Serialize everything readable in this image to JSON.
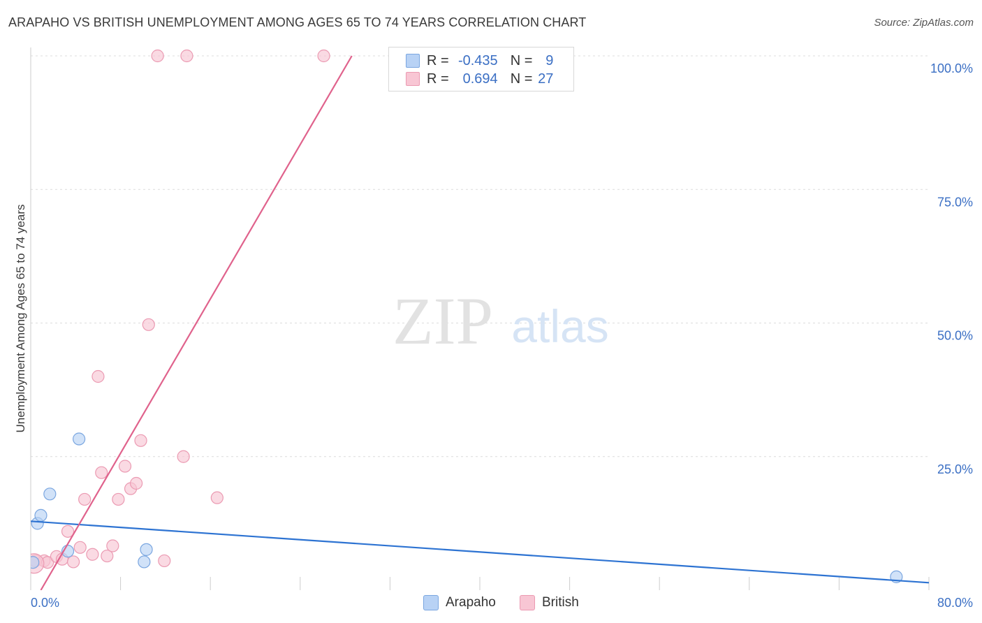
{
  "header": {
    "title": "ARAPAHO VS BRITISH UNEMPLOYMENT AMONG AGES 65 TO 74 YEARS CORRELATION CHART",
    "source": "Source: ZipAtlas.com"
  },
  "watermark": {
    "zip": "ZIP",
    "atlas": "atlas"
  },
  "legend": {
    "r_label": "R =",
    "n_label": "N =",
    "rows": [
      {
        "name": "Arapaho",
        "r": "-0.435",
        "n": "9"
      },
      {
        "name": "British",
        "r": "0.694",
        "n": "27"
      }
    ]
  },
  "colors": {
    "arapaho_fill": "#b8d2f5",
    "arapaho_stroke": "#7aa6e0",
    "arapaho_line": "#2d73d2",
    "british_fill": "#f8c6d4",
    "british_stroke": "#eb9ab2",
    "british_line": "#e0628c",
    "tick_label": "#3b6fc4",
    "grid": "#dcdcdc"
  },
  "chart_data": {
    "type": "scatter",
    "title": "ARAPAHO VS BRITISH UNEMPLOYMENT AMONG AGES 65 TO 74 YEARS CORRELATION CHART",
    "xlabel": "",
    "ylabel": "Unemployment Among Ages 65 to 74 years",
    "xlim": [
      0,
      80
    ],
    "ylim": [
      0,
      100
    ],
    "x_tick_labels": [
      "0.0%",
      "80.0%"
    ],
    "y_ticks": [
      25,
      50,
      75,
      100
    ],
    "y_tick_labels": [
      "25.0%",
      "50.0%",
      "75.0%",
      "100.0%"
    ],
    "grid": true,
    "series": [
      {
        "name": "Arapaho",
        "points": [
          [
            0.2,
            5.2
          ],
          [
            0.6,
            12.5
          ],
          [
            0.9,
            14
          ],
          [
            1.7,
            18
          ],
          [
            3.3,
            7.3
          ],
          [
            4.3,
            28.3
          ],
          [
            10.1,
            5.3
          ],
          [
            10.3,
            7.6
          ],
          [
            77.1,
            2.5
          ]
        ],
        "trendline": {
          "x": [
            0,
            80
          ],
          "y": [
            12.9,
            1.4
          ]
        }
      },
      {
        "name": "British",
        "points": [
          [
            0.4,
            5.5
          ],
          [
            1.2,
            5.5
          ],
          [
            1.5,
            5.2
          ],
          [
            2.3,
            6.3
          ],
          [
            2.8,
            5.8
          ],
          [
            3.3,
            11
          ],
          [
            3.8,
            5.3
          ],
          [
            4.4,
            8
          ],
          [
            4.8,
            17
          ],
          [
            5.5,
            6.7
          ],
          [
            6.0,
            40
          ],
          [
            6.3,
            22
          ],
          [
            6.8,
            6.4
          ],
          [
            7.3,
            8.3
          ],
          [
            7.8,
            17
          ],
          [
            8.4,
            23.2
          ],
          [
            8.9,
            19
          ],
          [
            9.4,
            20
          ],
          [
            9.8,
            28
          ],
          [
            10.5,
            49.7
          ],
          [
            11.3,
            100
          ],
          [
            11.9,
            5.5
          ],
          [
            13.6,
            25
          ],
          [
            13.9,
            100
          ],
          [
            16.6,
            17.3
          ],
          [
            26.1,
            100
          ],
          [
            0.3,
            5.0
          ]
        ],
        "trendline": {
          "x": [
            0.9,
            28.6
          ],
          "y": [
            0,
            100
          ]
        }
      }
    ]
  },
  "bottom_legend": [
    {
      "name": "Arapaho"
    },
    {
      "name": "British"
    }
  ]
}
